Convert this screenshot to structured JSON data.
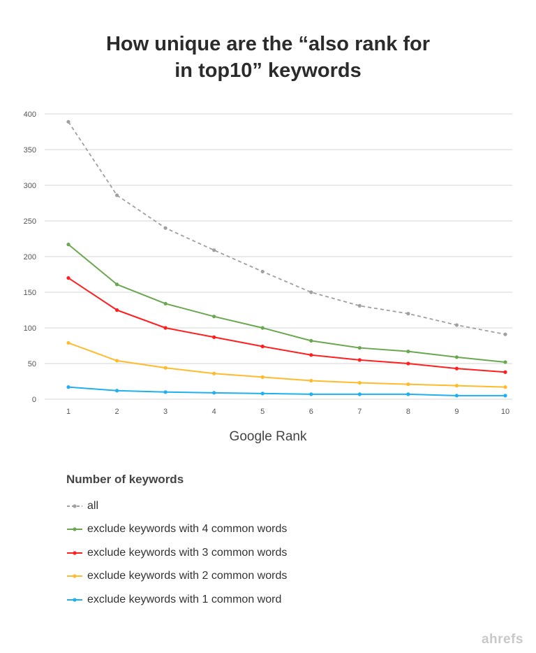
{
  "chart_data": {
    "type": "line",
    "title": "How unique are the “also rank for in top10” keywords",
    "title_lines": [
      "How unique are the “also rank for",
      "in top10” keywords"
    ],
    "xlabel": "Google Rank",
    "ylabel": "",
    "x": [
      1,
      2,
      3,
      4,
      5,
      6,
      7,
      8,
      9,
      10
    ],
    "ylim": [
      0,
      400
    ],
    "yticks": [
      0,
      50,
      100,
      150,
      200,
      250,
      300,
      350,
      400
    ],
    "grid": true,
    "legend_title": "Number of keywords",
    "legend_position": "bottom",
    "series": [
      {
        "name": "all",
        "color": "#a0a0a0",
        "dashed": true,
        "values": [
          389,
          286,
          240,
          209,
          179,
          150,
          131,
          120,
          104,
          91
        ]
      },
      {
        "name": "exclude keywords with 4 common words",
        "color": "#6aa84f",
        "dashed": false,
        "values": [
          217,
          161,
          134,
          116,
          100,
          82,
          72,
          67,
          59,
          52
        ]
      },
      {
        "name": "exclude keywords with 3 common words",
        "color": "#ff1f1f",
        "dashed": false,
        "values": [
          170,
          125,
          100,
          87,
          74,
          62,
          55,
          50,
          43,
          38
        ]
      },
      {
        "name": "exclude keywords with 2 common words",
        "color": "#ffbb2c",
        "dashed": false,
        "values": [
          79,
          54,
          44,
          36,
          31,
          26,
          23,
          21,
          19,
          17
        ]
      },
      {
        "name": "exclude keywords with 1 common word",
        "color": "#1fb0ee",
        "dashed": false,
        "values": [
          17,
          12,
          10,
          9,
          8,
          7,
          7,
          7,
          5,
          5
        ]
      }
    ]
  },
  "logo": "ahrefs"
}
